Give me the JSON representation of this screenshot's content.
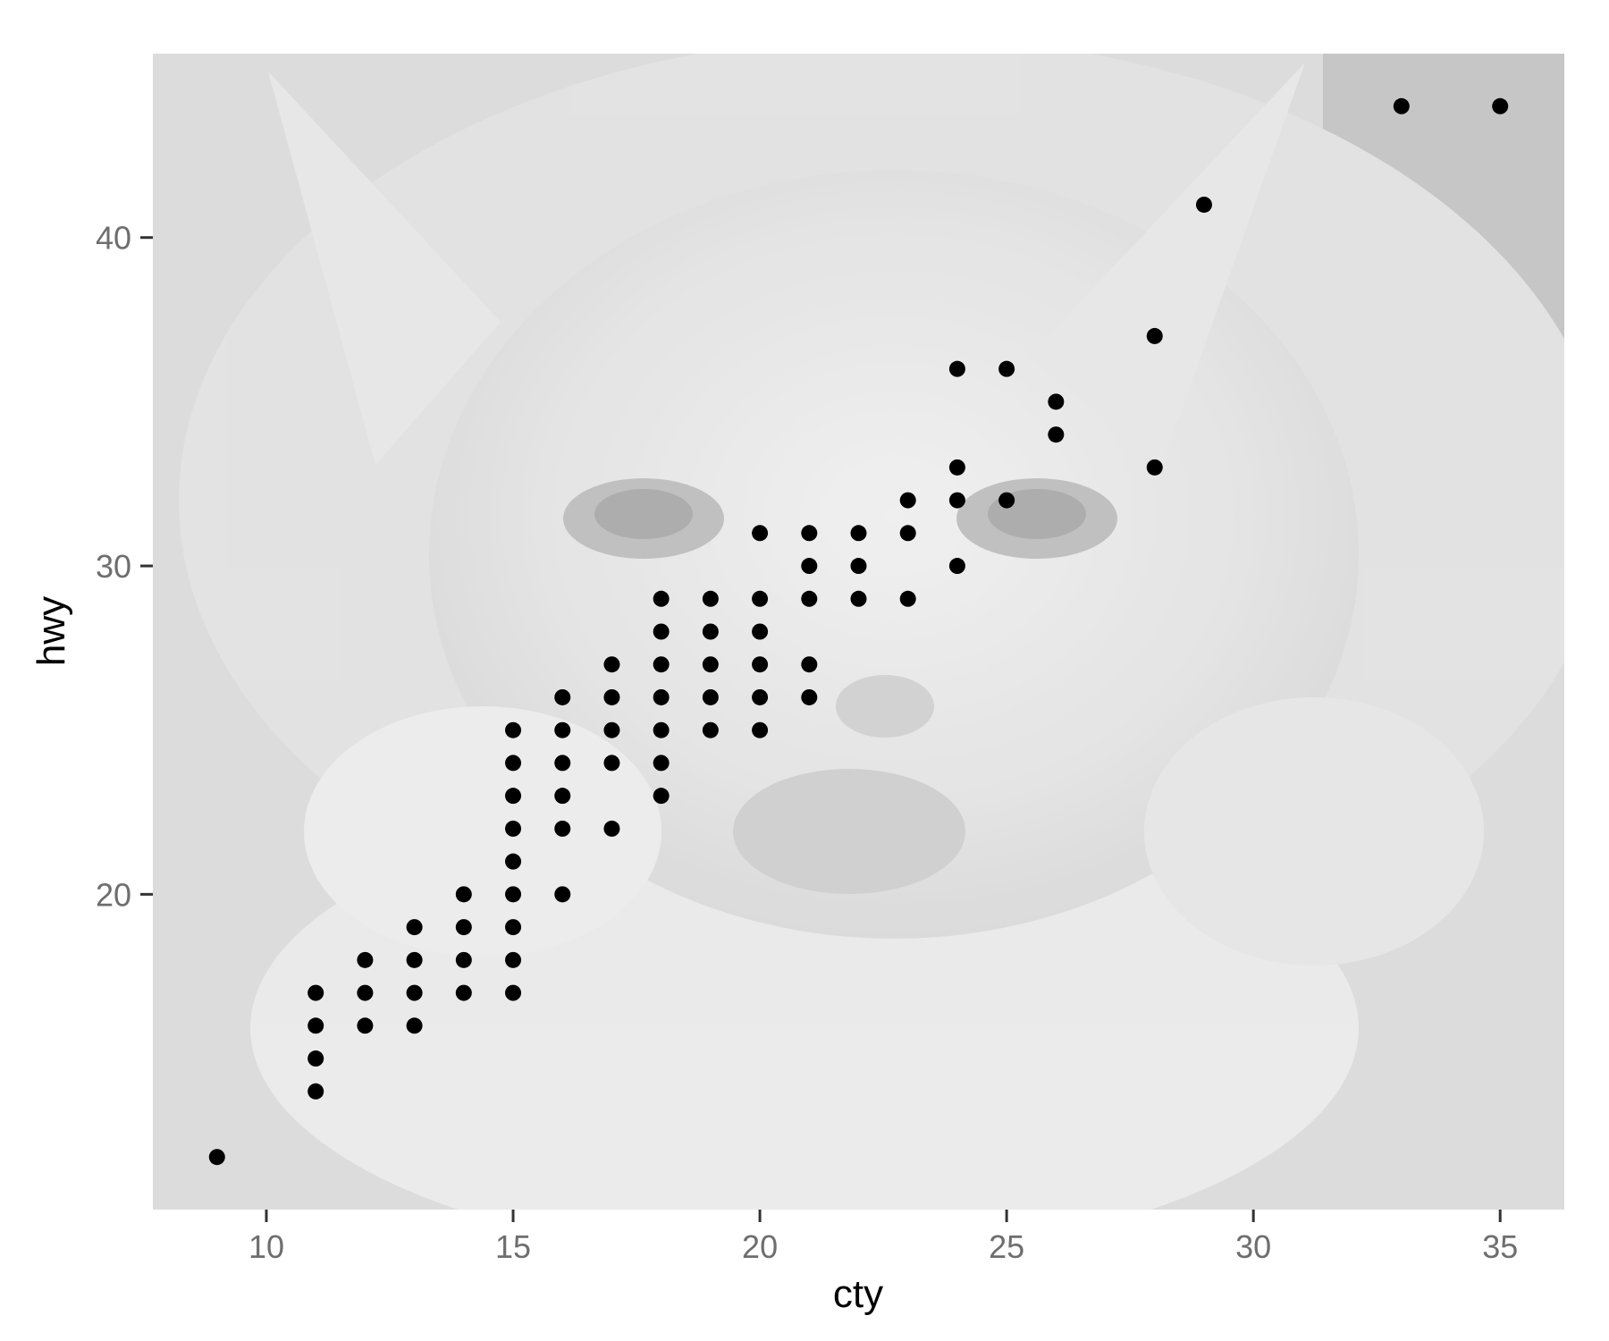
{
  "chart_data": {
    "type": "scatter",
    "title": "",
    "xlabel": "cty",
    "ylabel": "hwy",
    "xlim": [
      7.7,
      36.3
    ],
    "ylim": [
      10.4,
      45.6
    ],
    "x_ticks": [
      10,
      15,
      20,
      25,
      30,
      35
    ],
    "y_ticks": [
      20,
      30,
      40
    ],
    "grid": false,
    "background": "photo of a kitten (grayscale, faded)",
    "point_color": "#000000",
    "points": [
      [
        9,
        12
      ],
      [
        11,
        14
      ],
      [
        11,
        15
      ],
      [
        11,
        16
      ],
      [
        11,
        17
      ],
      [
        12,
        16
      ],
      [
        12,
        17
      ],
      [
        12,
        18
      ],
      [
        13,
        16
      ],
      [
        13,
        17
      ],
      [
        13,
        18
      ],
      [
        13,
        19
      ],
      [
        14,
        17
      ],
      [
        14,
        18
      ],
      [
        14,
        19
      ],
      [
        14,
        20
      ],
      [
        15,
        17
      ],
      [
        15,
        18
      ],
      [
        15,
        19
      ],
      [
        15,
        20
      ],
      [
        15,
        21
      ],
      [
        15,
        22
      ],
      [
        15,
        23
      ],
      [
        15,
        24
      ],
      [
        15,
        25
      ],
      [
        16,
        20
      ],
      [
        16,
        22
      ],
      [
        16,
        23
      ],
      [
        16,
        24
      ],
      [
        16,
        25
      ],
      [
        16,
        26
      ],
      [
        17,
        22
      ],
      [
        17,
        24
      ],
      [
        17,
        25
      ],
      [
        17,
        26
      ],
      [
        17,
        27
      ],
      [
        18,
        23
      ],
      [
        18,
        24
      ],
      [
        18,
        25
      ],
      [
        18,
        26
      ],
      [
        18,
        27
      ],
      [
        18,
        28
      ],
      [
        18,
        29
      ],
      [
        19,
        25
      ],
      [
        19,
        26
      ],
      [
        19,
        27
      ],
      [
        19,
        28
      ],
      [
        19,
        29
      ],
      [
        20,
        25
      ],
      [
        20,
        26
      ],
      [
        20,
        27
      ],
      [
        20,
        28
      ],
      [
        20,
        29
      ],
      [
        20,
        31
      ],
      [
        21,
        26
      ],
      [
        21,
        27
      ],
      [
        21,
        29
      ],
      [
        21,
        30
      ],
      [
        21,
        31
      ],
      [
        22,
        29
      ],
      [
        22,
        30
      ],
      [
        22,
        31
      ],
      [
        23,
        29
      ],
      [
        23,
        31
      ],
      [
        23,
        32
      ],
      [
        24,
        30
      ],
      [
        24,
        32
      ],
      [
        24,
        33
      ],
      [
        24,
        36
      ],
      [
        25,
        32
      ],
      [
        25,
        36
      ],
      [
        26,
        34
      ],
      [
        26,
        35
      ],
      [
        28,
        33
      ],
      [
        28,
        37
      ],
      [
        29,
        41
      ],
      [
        33,
        44
      ],
      [
        35,
        44
      ]
    ]
  }
}
